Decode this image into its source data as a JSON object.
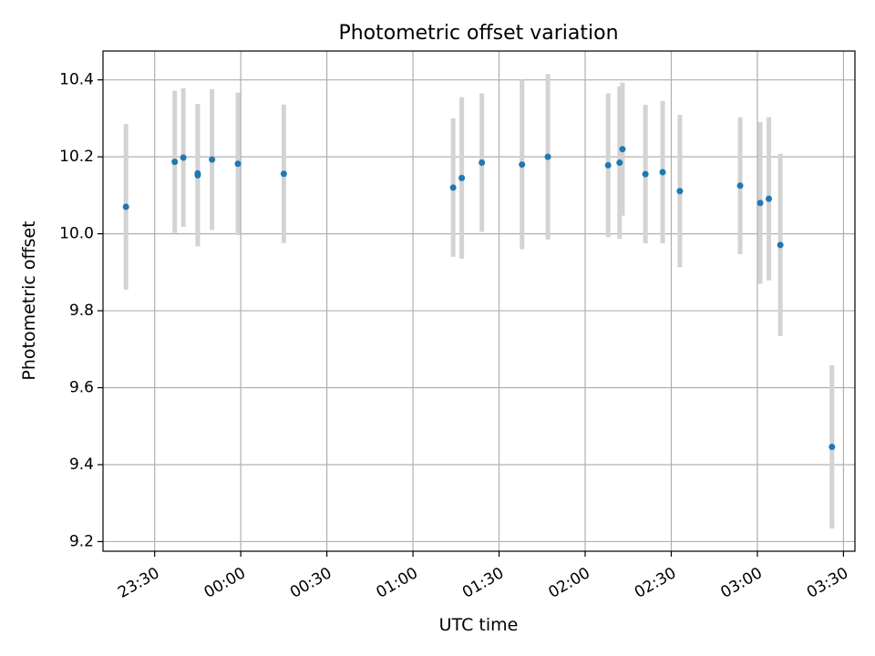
{
  "chart_data": {
    "type": "scatter",
    "title": "Photometric offset variation",
    "xlabel": "UTC time",
    "ylabel": "Photometric offset",
    "x_unit": "time (HH:MM), crosses midnight",
    "xlim": [
      "23:12",
      "03:34"
    ],
    "ylim": [
      9.175,
      10.475
    ],
    "xticks": [
      "23:30",
      "00:00",
      "00:30",
      "01:00",
      "01:30",
      "02:00",
      "02:30",
      "03:00",
      "03:30"
    ],
    "yticks": [
      9.2,
      9.4,
      9.6,
      9.8,
      10.0,
      10.2,
      10.4
    ],
    "ytick_labels": [
      "9.2",
      "9.4",
      "9.6",
      "9.8",
      "10.0",
      "10.2",
      "10.4"
    ],
    "grid": true,
    "colors": {
      "point": "#1f77b4",
      "errorbar": "#d3d3d3",
      "grid": "#b0b0b0"
    },
    "points": [
      {
        "x": "23:20",
        "y": 10.07,
        "err": 0.215
      },
      {
        "x": "23:37",
        "y": 10.187,
        "err": 0.185
      },
      {
        "x": "23:40",
        "y": 10.198,
        "err": 0.18
      },
      {
        "x": "23:45",
        "y": 10.152,
        "err": 0.185
      },
      {
        "x": "23:45",
        "y": 10.157,
        "err": 0.18
      },
      {
        "x": "23:50",
        "y": 10.193,
        "err": 0.183
      },
      {
        "x": "23:59",
        "y": 10.182,
        "err": 0.185
      },
      {
        "x": "00:15",
        "y": 10.156,
        "err": 0.18
      },
      {
        "x": "01:14",
        "y": 10.12,
        "err": 0.18
      },
      {
        "x": "01:17",
        "y": 10.145,
        "err": 0.21
      },
      {
        "x": "01:24",
        "y": 10.185,
        "err": 0.18
      },
      {
        "x": "01:38",
        "y": 10.18,
        "err": 0.22
      },
      {
        "x": "01:47",
        "y": 10.2,
        "err": 0.215
      },
      {
        "x": "02:08",
        "y": 10.178,
        "err": 0.187
      },
      {
        "x": "02:12",
        "y": 10.185,
        "err": 0.198
      },
      {
        "x": "02:13",
        "y": 10.22,
        "err": 0.173
      },
      {
        "x": "02:21",
        "y": 10.155,
        "err": 0.18
      },
      {
        "x": "02:27",
        "y": 10.16,
        "err": 0.185
      },
      {
        "x": "02:33",
        "y": 10.111,
        "err": 0.198
      },
      {
        "x": "02:54",
        "y": 10.125,
        "err": 0.178
      },
      {
        "x": "03:01",
        "y": 10.08,
        "err": 0.21
      },
      {
        "x": "03:04",
        "y": 10.091,
        "err": 0.212
      },
      {
        "x": "03:08",
        "y": 9.971,
        "err": 0.237
      },
      {
        "x": "03:26",
        "y": 9.446,
        "err": 0.212
      }
    ]
  }
}
